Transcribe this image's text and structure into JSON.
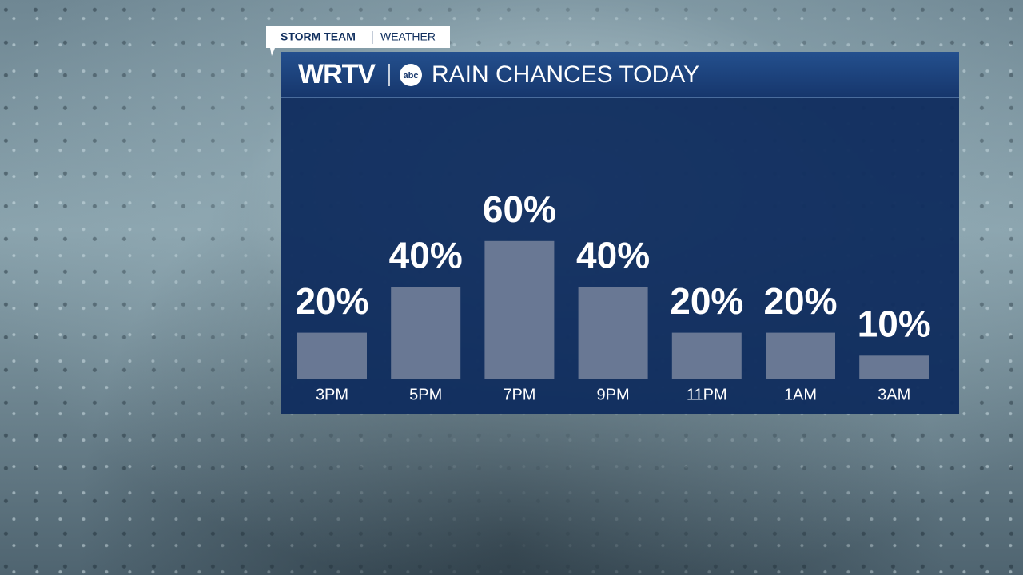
{
  "header": {
    "tag": "STORM TEAM",
    "section": "WEATHER",
    "station": "WRTV",
    "network": "abc"
  },
  "chart_data": {
    "type": "bar",
    "title": "RAIN CHANCES TODAY",
    "categories": [
      "3PM",
      "5PM",
      "7PM",
      "9PM",
      "11PM",
      "1AM",
      "3AM"
    ],
    "values": [
      20,
      40,
      60,
      40,
      20,
      20,
      10
    ],
    "value_labels": [
      "20%",
      "40%",
      "60%",
      "40%",
      "20%",
      "20%",
      "10%"
    ],
    "color": "#6e7c97"
  }
}
